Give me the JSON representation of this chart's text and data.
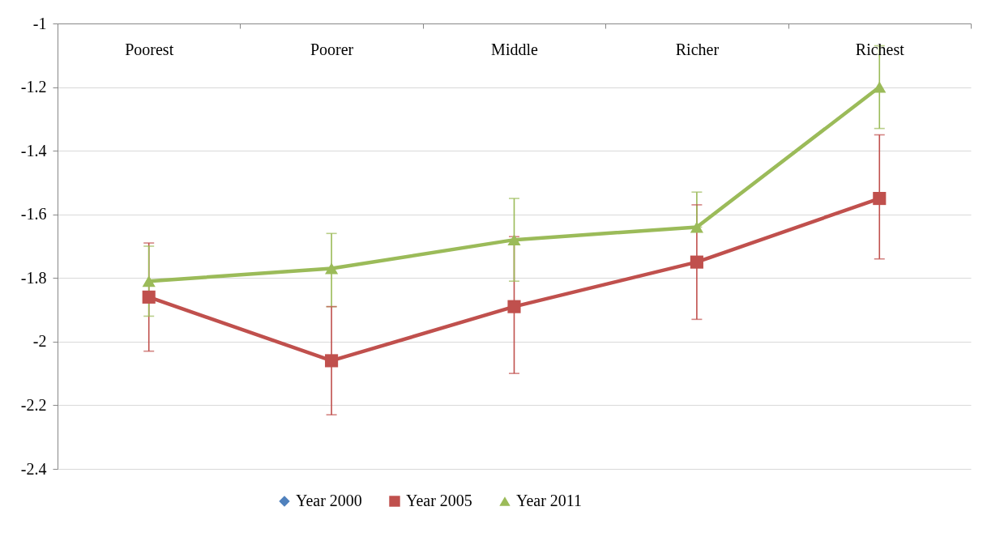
{
  "chart_data": {
    "type": "line",
    "categories": [
      "Poorest",
      "Poorer",
      "Middle",
      "Richer",
      "Richest"
    ],
    "ylim": [
      -2.4,
      -1
    ],
    "yticks": [
      -2.4,
      -2.2,
      -2,
      -1.8,
      -1.6,
      -1.4,
      -1.2,
      -1
    ],
    "grid": "y",
    "legend": "bottom",
    "series": [
      {
        "name": "Year 2000",
        "color": "#4f81bd",
        "marker": "diamond",
        "values": [
          null,
          null,
          null,
          null,
          null
        ]
      },
      {
        "name": "Year 2005",
        "color": "#c0504d",
        "marker": "square",
        "values": [
          -1.86,
          -2.06,
          -1.89,
          -1.75,
          -1.55
        ],
        "errors": [
          [
            -2.03,
            -1.69
          ],
          [
            -2.23,
            -1.89
          ],
          [
            -2.1,
            -1.67
          ],
          [
            -1.93,
            -1.57
          ],
          [
            -1.74,
            -1.35
          ]
        ]
      },
      {
        "name": "Year 2011",
        "color": "#9bbb59",
        "marker": "triangle",
        "values": [
          -1.81,
          -1.77,
          -1.68,
          -1.64,
          -1.2
        ],
        "errors": [
          [
            -1.92,
            -1.7
          ],
          [
            -1.89,
            -1.66
          ],
          [
            -1.81,
            -1.55
          ],
          [
            -1.64,
            -1.53
          ],
          [
            -1.33,
            -1.07
          ]
        ]
      }
    ]
  }
}
